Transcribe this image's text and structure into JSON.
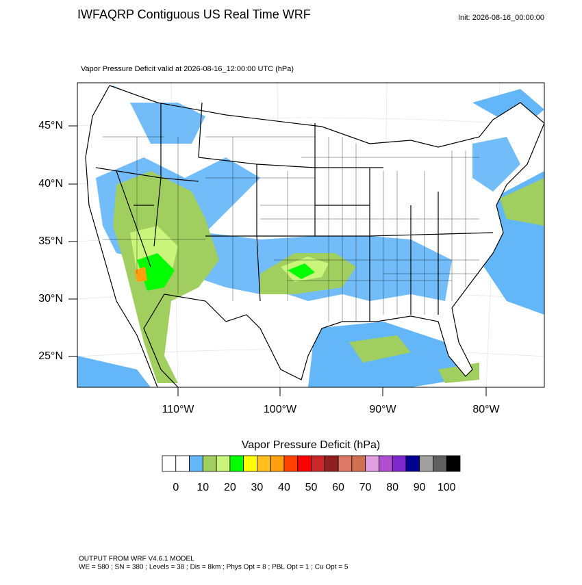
{
  "header": {
    "title": "IWFAQRP Contiguous US Real Time WRF",
    "init": "Init: 2026-08-16_00:00:00"
  },
  "map": {
    "subtitle": "Vapor Pressure Deficit valid at 2026-08-16_12:00:00 UTC   (hPa)",
    "lat_labels": [
      "45°N",
      "40°N",
      "35°N",
      "30°N",
      "25°N"
    ],
    "lon_labels": [
      "110°W",
      "100°W",
      "90°W",
      "80°W"
    ]
  },
  "colorbar": {
    "title": "Vapor Pressure Deficit  (hPa)",
    "colors": [
      "#ffffff",
      "#ffffff",
      "#63b6f8",
      "#a0cf60",
      "#c8f57a",
      "#00ff00",
      "#ffff00",
      "#ffc020",
      "#ffa010",
      "#ff4000",
      "#ff0000",
      "#c82828",
      "#902020",
      "#e07868",
      "#d07050",
      "#e0a0e0",
      "#b050d0",
      "#8028d0",
      "#000090",
      "#a0a0a0",
      "#606060",
      "#000000"
    ],
    "ticks": [
      0,
      10,
      20,
      30,
      40,
      50,
      60,
      70,
      80,
      90,
      100
    ]
  },
  "footer": {
    "line1": "OUTPUT FROM WRF V4.6.1 MODEL",
    "line2": "WE = 580 ; SN = 380 ; Levels = 38 ; Dis = 8km ; Phys Opt = 8 ; PBL Opt = 1 ; Cu Opt = 5"
  }
}
